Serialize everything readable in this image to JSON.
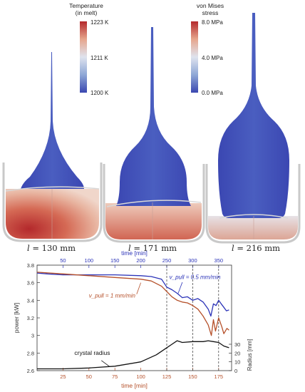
{
  "temperature_legend": {
    "title": "Temperature\n(in melt)",
    "ticks": [
      "1223 K",
      "1211 K",
      "1200 K"
    ],
    "colors": [
      "#b4292c",
      "#e6a58c",
      "#dfe3ee",
      "#8ea7d6",
      "#3a47b0"
    ]
  },
  "stress_legend": {
    "title": "von Mises\nstress",
    "ticks": [
      "8.0 MPa",
      "4.0 MPa",
      "0.0 MPa"
    ],
    "colors": [
      "#b4292c",
      "#e6a58c",
      "#dfe3ee",
      "#8ea7d6",
      "#3a47b0"
    ]
  },
  "snapshots": [
    {
      "l_symbol": "l",
      "value": "= 130 mm"
    },
    {
      "l_symbol": "l",
      "value": "= 171 mm"
    },
    {
      "l_symbol": "l",
      "value": "= 216 mm"
    }
  ],
  "chart_data": {
    "type": "line",
    "top_axis": {
      "label": "time [min]",
      "ticks": [
        50,
        100,
        150,
        200,
        250,
        300,
        350
      ],
      "range": [
        0,
        375
      ],
      "color": "#2b33b8"
    },
    "bottom_axis": {
      "label": "time [min]",
      "ticks": [
        25,
        50,
        75,
        100,
        125,
        150,
        175
      ],
      "range": [
        0,
        187.5
      ],
      "color": "#b5502a"
    },
    "left_axis": {
      "label": "power [kW]",
      "ticks": [
        2.6,
        2.8,
        3,
        3.2,
        3.4,
        3.6,
        3.8
      ],
      "range": [
        2.6,
        3.8
      ]
    },
    "right_axis": {
      "label": "Radius [mm]",
      "ticks": [
        0,
        10,
        20,
        30
      ],
      "range": [
        0,
        120
      ]
    },
    "vlines_bottom_time": [
      125,
      150,
      175
    ],
    "series": [
      {
        "name": "v_pull = 0.5 mm/min",
        "axis": "top",
        "color": "#2b33b8",
        "x": [
          0,
          20,
          50,
          100,
          150,
          200,
          220,
          240,
          250,
          260,
          270,
          280,
          290,
          300,
          310,
          320,
          330,
          335,
          340,
          345,
          350,
          355,
          360,
          365,
          370
        ],
        "y": [
          3.71,
          3.7,
          3.69,
          3.69,
          3.69,
          3.68,
          3.67,
          3.64,
          3.55,
          3.52,
          3.48,
          3.43,
          3.44,
          3.4,
          3.42,
          3.38,
          3.3,
          3.22,
          3.36,
          3.34,
          3.4,
          3.36,
          3.32,
          3.28,
          3.29
        ]
      },
      {
        "name": "v_pull = 1 mm/min",
        "axis": "bottom",
        "color": "#b5502a",
        "x": [
          0,
          25,
          50,
          75,
          100,
          110,
          120,
          125,
          130,
          135,
          140,
          145,
          150,
          155,
          160,
          165,
          168,
          170,
          172,
          175,
          178,
          180,
          183,
          185
        ],
        "y": [
          3.72,
          3.7,
          3.68,
          3.66,
          3.64,
          3.62,
          3.56,
          3.5,
          3.44,
          3.4,
          3.38,
          3.37,
          3.34,
          3.3,
          3.22,
          3.12,
          3.0,
          3.18,
          3.05,
          3.2,
          3.1,
          3.02,
          3.08,
          3.06
        ]
      },
      {
        "name": "crystal radius",
        "axis": "bottom-radius",
        "color": "#111111",
        "x": [
          0,
          25,
          50,
          75,
          100,
          115,
          125,
          130,
          135,
          140,
          150,
          160,
          165,
          170,
          175,
          180,
          185
        ],
        "y": [
          2,
          2,
          3,
          5,
          10,
          18,
          26,
          30,
          34,
          32,
          33,
          33,
          34,
          33,
          32,
          28,
          26
        ]
      }
    ],
    "annotations": [
      {
        "text": "v_pull = 0.5 mm/min"
      },
      {
        "text": "v_pull = 1 mm/min"
      },
      {
        "text": "crystal radius"
      }
    ]
  }
}
